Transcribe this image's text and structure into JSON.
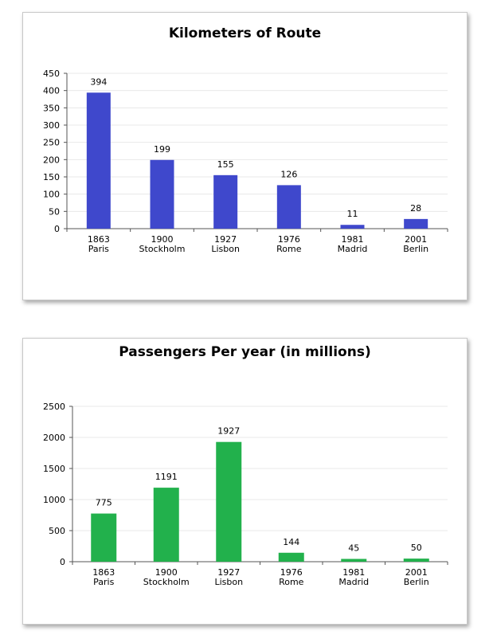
{
  "chart_data": [
    {
      "type": "bar",
      "title": "Kilometers of Route",
      "categories": [
        [
          "1863",
          "Paris"
        ],
        [
          "1900",
          "Stockholm"
        ],
        [
          "1927",
          "Lisbon"
        ],
        [
          "1976",
          "Rome"
        ],
        [
          "1981",
          "Madrid"
        ],
        [
          "2001",
          "Berlin"
        ]
      ],
      "values": [
        394,
        199,
        155,
        126,
        11,
        28
      ],
      "ylim": [
        0,
        450
      ],
      "yticks": [
        0,
        50,
        100,
        150,
        200,
        250,
        300,
        350,
        400,
        450
      ],
      "grid": true,
      "legend": "none",
      "bar_color": "#3f48cc"
    },
    {
      "type": "bar",
      "title": "Passengers Per year (in millions)",
      "categories": [
        [
          "1863",
          "Paris"
        ],
        [
          "1900",
          "Stockholm"
        ],
        [
          "1927",
          "Lisbon"
        ],
        [
          "1976",
          "Rome"
        ],
        [
          "1981",
          "Madrid"
        ],
        [
          "2001",
          "Berlin"
        ]
      ],
      "values": [
        775,
        1191,
        1927,
        144,
        45,
        50
      ],
      "ylim": [
        0,
        2500
      ],
      "yticks": [
        0,
        500,
        1000,
        1500,
        2000,
        2500
      ],
      "grid": true,
      "legend": "none",
      "bar_color": "#22b14c"
    }
  ]
}
